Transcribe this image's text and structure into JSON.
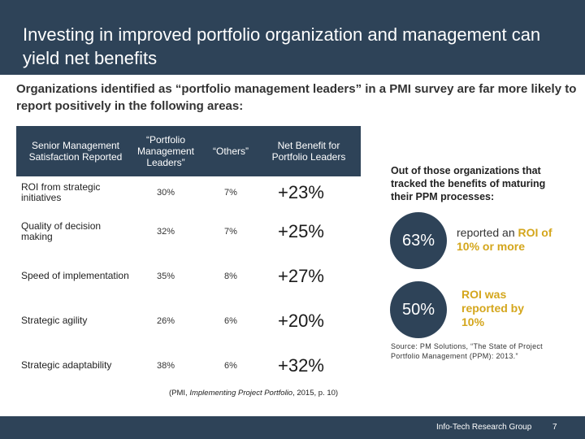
{
  "header": {
    "title": "Investing in improved portfolio organization and management can yield net benefits"
  },
  "subtitle": "Organizations identified as “portfolio management leaders” in a PMI survey are far more likely to report positively in the following areas:",
  "table": {
    "headers": [
      "Senior Management Satisfaction Reported",
      "“Portfolio Management Leaders”",
      "“Others”",
      "Net Benefit for Portfolio Leaders"
    ],
    "rows": [
      {
        "label": "ROI from strategic initiatives",
        "leaders": "30%",
        "others": "7%",
        "benefit": "+23%"
      },
      {
        "label": "Quality of decision making",
        "leaders": "32%",
        "others": "7%",
        "benefit": "+25%"
      },
      {
        "label": "Speed of implementation",
        "leaders": "35%",
        "others": "8%",
        "benefit": "+27%"
      },
      {
        "label": "Strategic agility",
        "leaders": "26%",
        "others": "6%",
        "benefit": "+20%"
      },
      {
        "label": "Strategic adaptability",
        "leaders": "38%",
        "others": "6%",
        "benefit": "+32%"
      }
    ]
  },
  "citation": {
    "prefix": "(PMI, ",
    "italic": "Implementing Project Portfolio",
    "suffix": ", 2015, p. 10)"
  },
  "side": {
    "intro": "Out of those organizations that tracked the benefits of maturing their PPM processes:",
    "stat1": {
      "value": "63%",
      "text_a": "reported an ",
      "text_b": "ROI of 10%",
      "text_c": " or more"
    },
    "stat2": {
      "value": "50%",
      "text_a": "ROI",
      "text_b": " was reported by 10%"
    },
    "source": "Source: PM Solutions, “The State of Project Portfolio Management (PPM): 2013.”"
  },
  "footer": {
    "org": "Info-Tech Research Group",
    "page": "7"
  },
  "colors": {
    "navy": "#2e4358",
    "accent": "#d4a61c"
  }
}
